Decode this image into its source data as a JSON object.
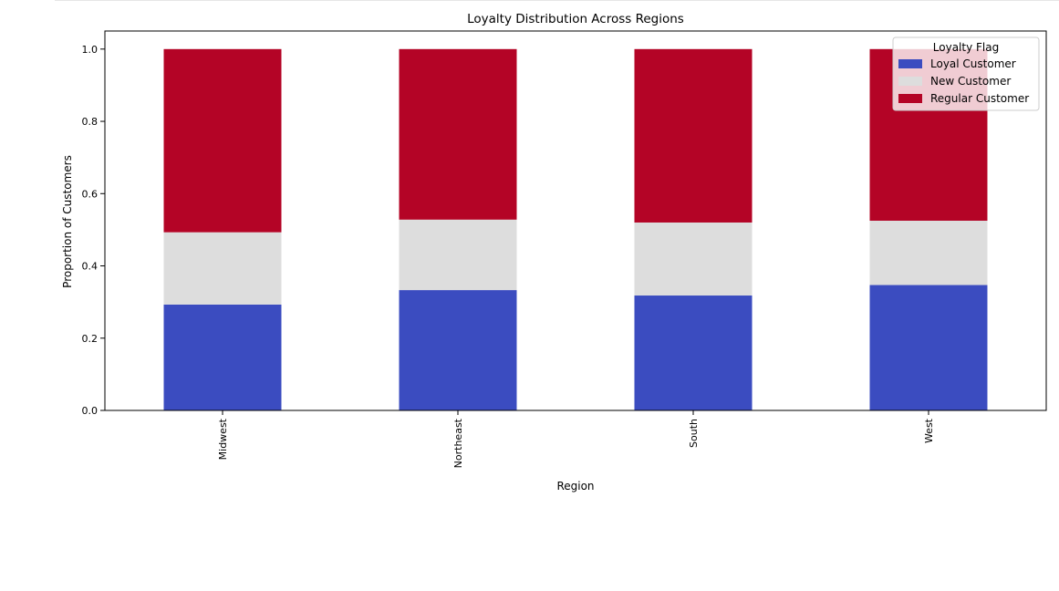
{
  "chart_data": {
    "type": "bar",
    "stacked": true,
    "title": "Loyalty Distribution Across Regions",
    "xlabel": "Region",
    "ylabel": "Proportion of Customers",
    "categories": [
      "Midwest",
      "Northeast",
      "South",
      "West"
    ],
    "ylim": [
      0,
      1.05
    ],
    "yticks": [
      "0.0",
      "0.2",
      "0.4",
      "0.6",
      "0.8",
      "1.0"
    ],
    "grid": false,
    "legend": {
      "title": "Loyalty Flag",
      "placement": "top-right"
    },
    "series": [
      {
        "name": "Loyal Customer",
        "color": "#3b4cc0",
        "values": [
          0.293,
          0.333,
          0.318,
          0.347
        ]
      },
      {
        "name": "New Customer",
        "color": "#dddddd",
        "values": [
          0.2,
          0.195,
          0.202,
          0.178
        ]
      },
      {
        "name": "Regular Customer",
        "color": "#b40426",
        "values": [
          0.507,
          0.472,
          0.48,
          0.475
        ]
      }
    ]
  }
}
